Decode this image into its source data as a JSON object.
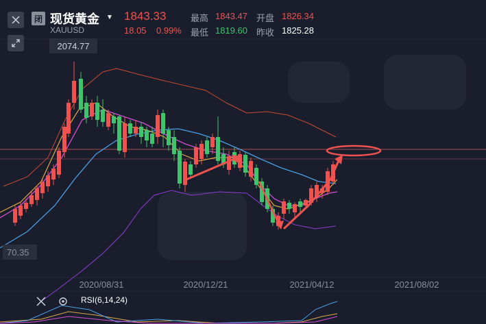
{
  "header": {
    "badge": "闭",
    "title": "现货黄金",
    "symbol": "XAUUSD",
    "price": "1843.33",
    "change": "18.05",
    "change_pct": "0.99%",
    "high_label": "最高",
    "high_value": "1843.47",
    "open_label": "开盘",
    "open_value": "1826.34",
    "low_label": "最低",
    "low_value": "1819.60",
    "prev_close_label": "昨收",
    "prev_close_value": "1825.28"
  },
  "chart": {
    "max_label": "2074.77",
    "min_label": "70.35",
    "dates": [
      "2020/08/31",
      "2020/12/21",
      "2021/04/12",
      "2021/08/02"
    ]
  },
  "rsi": {
    "label": "RSI(6,14,24)"
  },
  "colors": {
    "up": "#f0534f",
    "down": "#3ec46d",
    "background": "#1a1e2c"
  },
  "icons": [
    "close-icon",
    "expand-icon",
    "close-icon",
    "settings-icon",
    "dropdown-caret-icon"
  ]
}
